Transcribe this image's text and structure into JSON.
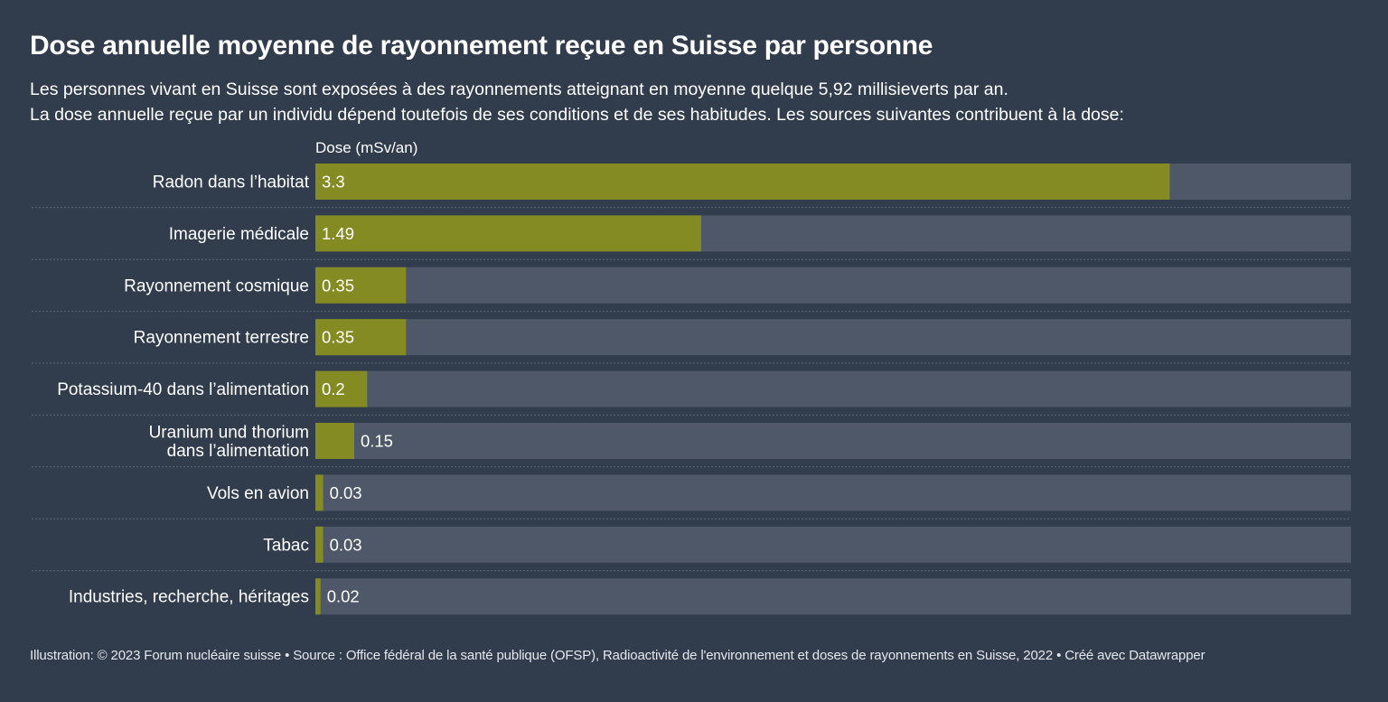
{
  "header": {
    "title": "Dose annuelle moyenne de rayonnement reçue en Suisse par personne",
    "description_line1": "Les personnes vivant en Suisse sont exposées à des rayonnements atteignant en moyenne quelque 5,92 millisieverts par an.",
    "description_line2": "La dose annuelle reçue par un individu dépend toutefois de ses conditions et de ses habitudes. Les sources suivantes contribuent à la dose:",
    "column_label": "Dose (mSv/an)"
  },
  "chart_data": {
    "type": "bar",
    "orientation": "horizontal",
    "categories": [
      [
        "Radon dans l’habitat"
      ],
      [
        "Imagerie médicale"
      ],
      [
        "Rayonnement cosmique"
      ],
      [
        "Rayonnement terrestre"
      ],
      [
        "Potassium-40 dans l’alimentation"
      ],
      [
        "Uranium und thorium",
        "dans l’alimentation"
      ],
      [
        "Vols en avion"
      ],
      [
        "Tabac"
      ],
      [
        "Industries, recherche, héritages"
      ]
    ],
    "values": [
      3.3,
      1.49,
      0.35,
      0.35,
      0.2,
      0.15,
      0.03,
      0.03,
      0.02
    ],
    "value_labels": [
      "3.3",
      "1.49",
      "0.35",
      "0.35",
      "0.2",
      "0.15",
      "0.03",
      "0.03",
      "0.02"
    ],
    "xlim": [
      0,
      4
    ],
    "ylabel": "Dose (mSv/an)",
    "colors": {
      "bar": "#848b22",
      "track": "#4e5868",
      "background": "#313c4d",
      "separator": "#5c6676"
    }
  },
  "footer": {
    "credit": "Illustration: © 2023 Forum nucléaire suisse • Source : Office fédéral de la santé publique (OFSP), Radioactivité de l'environnement et doses de rayonnements en Suisse, 2022 • Créé avec Datawrapper"
  }
}
